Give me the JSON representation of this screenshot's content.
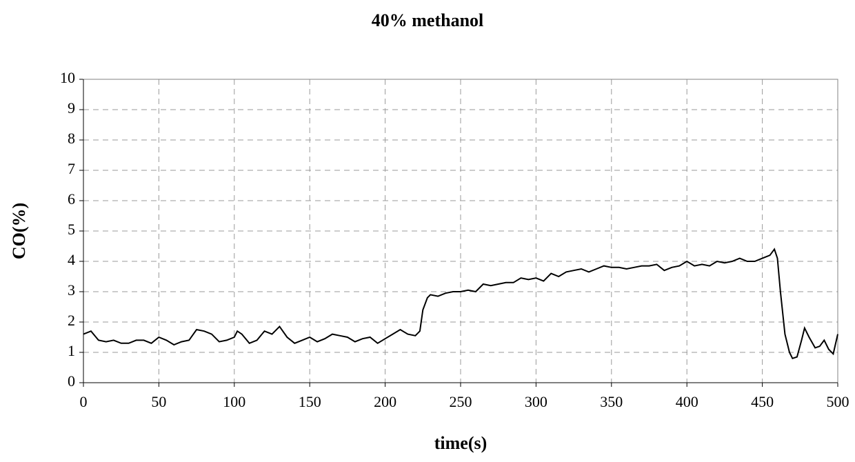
{
  "chart_data": {
    "type": "line",
    "title": "40% methanol",
    "x_label": "time(s)",
    "y_label": "CO(%)",
    "x": [
      0,
      5,
      10,
      15,
      20,
      25,
      30,
      35,
      40,
      45,
      50,
      55,
      60,
      65,
      70,
      75,
      80,
      85,
      90,
      95,
      100,
      102,
      105,
      110,
      115,
      120,
      125,
      130,
      135,
      140,
      145,
      150,
      155,
      160,
      165,
      170,
      175,
      180,
      185,
      190,
      195,
      200,
      205,
      210,
      215,
      220,
      223,
      225,
      228,
      230,
      235,
      240,
      245,
      250,
      255,
      260,
      265,
      270,
      275,
      280,
      285,
      290,
      295,
      300,
      305,
      310,
      315,
      320,
      325,
      330,
      335,
      340,
      345,
      350,
      355,
      360,
      365,
      370,
      375,
      380,
      385,
      390,
      395,
      400,
      405,
      410,
      415,
      420,
      425,
      430,
      435,
      440,
      445,
      450,
      455,
      458,
      460,
      462,
      465,
      468,
      470,
      473,
      476,
      478,
      481,
      485,
      488,
      491,
      494,
      497,
      500
    ],
    "series": [
      {
        "name": "CO",
        "color": "#000000",
        "values": [
          1.6,
          1.7,
          1.4,
          1.35,
          1.4,
          1.3,
          1.3,
          1.4,
          1.4,
          1.3,
          1.5,
          1.4,
          1.25,
          1.35,
          1.4,
          1.75,
          1.7,
          1.6,
          1.35,
          1.4,
          1.5,
          1.7,
          1.6,
          1.3,
          1.4,
          1.7,
          1.6,
          1.85,
          1.5,
          1.3,
          1.4,
          1.5,
          1.35,
          1.45,
          1.6,
          1.55,
          1.5,
          1.35,
          1.45,
          1.5,
          1.3,
          1.45,
          1.6,
          1.75,
          1.6,
          1.55,
          1.7,
          2.4,
          2.8,
          2.9,
          2.85,
          2.95,
          3.0,
          3.0,
          3.05,
          3.0,
          3.25,
          3.2,
          3.25,
          3.3,
          3.3,
          3.45,
          3.4,
          3.45,
          3.35,
          3.6,
          3.5,
          3.65,
          3.7,
          3.75,
          3.65,
          3.75,
          3.85,
          3.8,
          3.8,
          3.75,
          3.8,
          3.85,
          3.85,
          3.9,
          3.7,
          3.8,
          3.85,
          4.0,
          3.85,
          3.9,
          3.85,
          4.0,
          3.95,
          4.0,
          4.1,
          4.0,
          4.0,
          4.1,
          4.2,
          4.4,
          4.1,
          3.0,
          1.6,
          1.0,
          0.8,
          0.85,
          1.4,
          1.8,
          1.5,
          1.15,
          1.2,
          1.4,
          1.1,
          0.95,
          1.6
        ]
      }
    ],
    "xlim": [
      0,
      500
    ],
    "xticks": [
      0,
      50,
      100,
      150,
      200,
      250,
      300,
      350,
      400,
      450,
      500
    ],
    "ylim": [
      0,
      10
    ],
    "yticks": [
      0,
      1,
      2,
      3,
      4,
      5,
      6,
      7,
      8,
      9,
      10
    ],
    "grid": true
  }
}
